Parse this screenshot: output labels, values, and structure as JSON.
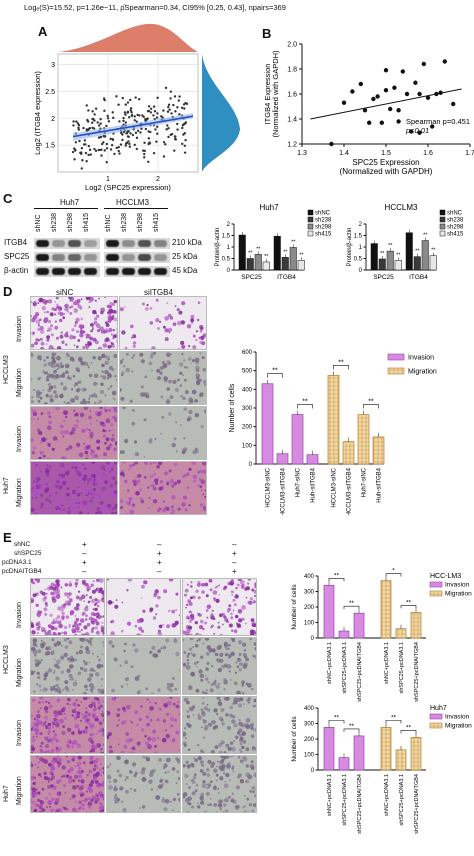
{
  "panelA": {
    "letter": "A",
    "stats_header": "Logₑ(S)=15.52, p=1.26e−11, ρ̂Spearman=0.34, CI95% [0.25, 0.43], npairs=369",
    "xlabel": "Log2 (SPC25 expression)",
    "ylabel": "Log2 (ITGB4 expression)",
    "xticks": [
      "1",
      "2"
    ],
    "yticks": [
      "1.5",
      "2",
      "2.5",
      "3"
    ]
  },
  "panelB": {
    "letter": "B",
    "xlabel_line1": "SPC25 Expression",
    "xlabel_line2": "(Normalized with GAPDH)",
    "ylabel_line1": "ITGB4 Expression",
    "ylabel_line2": "(Normalized with GAPDH)",
    "xticks": [
      "1.3",
      "1.4",
      "1.5",
      "1.6",
      "1.7"
    ],
    "yticks": [
      "1.2",
      "1.4",
      "1.6",
      "1.8",
      "2.0"
    ],
    "annotation_line1": "Spearman p=0.451",
    "annotation_line2": "p<0.01"
  },
  "panelC": {
    "letter": "C",
    "cell_lines": [
      "Huh7",
      "HCCLM3"
    ],
    "lanes": [
      "shNC",
      "sh238",
      "sh298",
      "sh415",
      "shNC",
      "sh238",
      "sh298",
      "sh415"
    ],
    "proteins": [
      "ITGB4",
      "SPC25",
      "β-actin"
    ],
    "sizes": [
      "210 kDa",
      "25 kDa",
      "45 kDa"
    ],
    "legend": [
      "shNC",
      "sh238",
      "sh298",
      "sh415"
    ],
    "ylabel": "Protein/β-actin",
    "sig": "**"
  },
  "panelD": {
    "letter": "D",
    "col_labels": [
      "siNC",
      "siITGB4"
    ],
    "row_groups": [
      "HCCLM3",
      "Huh7"
    ],
    "row_labels": [
      "Invasion",
      "Migration",
      "Invasion",
      "Migration"
    ],
    "ylabel": "Number of cells",
    "legend": [
      "Invasion",
      "Migration"
    ],
    "categories": [
      "HCCLM3-siNC",
      "HCCLM3-siITGB4",
      "Huh7-siNC",
      "Huh-siITGB4",
      "HCCLM3-siNC",
      "HCCLM3-siITGB4",
      "Huh7-siNC",
      "Huh-siITGB4"
    ],
    "sig": "**"
  },
  "panelE": {
    "letter": "E",
    "treatments": [
      "shNC",
      "shSPC25",
      "pcDNA3.1",
      "pcDNAITGB4"
    ],
    "matrix": [
      [
        "+",
        "–",
        "–"
      ],
      [
        "–",
        "+",
        "+"
      ],
      [
        "+",
        "+",
        "–"
      ],
      [
        "–",
        "–",
        "+"
      ]
    ],
    "row_groups": [
      "HCCLM3",
      "Huh7"
    ],
    "row_labels": [
      "Invasion",
      "Migration",
      "Invasion",
      "Migration"
    ],
    "ylabel": "Number of cells",
    "legend": [
      "Invasion",
      "Migration"
    ],
    "chart_titles": [
      "HCC-LM3",
      "Huh7"
    ],
    "categories": [
      "shNC+pcDNA3.1",
      "shSPC25+pcDNA3.1",
      "shSPC25+pcDNAITGB4"
    ],
    "sig_labels": [
      "**",
      "**",
      "*",
      "**",
      "**",
      "**",
      "**",
      "**"
    ]
  },
  "chart_data": [
    {
      "type": "scatter",
      "xlabel": "Log2 (SPC25 expression)",
      "ylabel": "Log2 (ITGB4 expression)",
      "xlim": [
        0,
        2.8
      ],
      "ylim": [
        1.0,
        3.2
      ],
      "xticks": [
        1,
        2
      ],
      "yticks": [
        1.5,
        2,
        2.5,
        3
      ],
      "fit": {
        "x0": 0,
        "y0": 1.63,
        "x1": 2.8,
        "y1": 2.05
      },
      "note": "369 pairs"
    },
    {
      "type": "scatter",
      "xlabel": "SPC25 Expression (Normalized with GAPDH)",
      "ylabel": "ITGB4 Expression (Normalized with GAPDH)",
      "xlim": [
        1.3,
        1.7
      ],
      "ylim": [
        1.2,
        2.0
      ],
      "x": [
        1.37,
        1.4,
        1.44,
        1.46,
        1.47,
        1.48,
        1.49,
        1.5,
        1.51,
        1.52,
        1.53,
        1.54,
        1.55,
        1.56,
        1.57,
        1.58,
        1.59,
        1.6,
        1.62,
        1.63,
        1.64,
        1.66,
        1.45,
        1.53,
        1.58,
        1.5,
        1.42,
        1.61
      ],
      "y": [
        1.2,
        1.53,
        1.68,
        1.37,
        1.56,
        1.58,
        1.37,
        1.63,
        1.48,
        1.65,
        1.47,
        1.78,
        1.6,
        1.3,
        1.69,
        1.6,
        1.84,
        1.57,
        1.6,
        1.61,
        1.86,
        1.52,
        1.47,
        1.38,
        1.29,
        1.79,
        1.62,
        1.34
      ],
      "fit": {
        "x0": 1.32,
        "y0": 1.4,
        "x1": 1.68,
        "y1": 1.64
      }
    },
    {
      "type": "bar",
      "title": "Huh7",
      "categories": [
        "SPC25",
        "ITGB4"
      ],
      "series": [
        {
          "name": "shNC",
          "values": [
            1.52,
            1.47
          ]
        },
        {
          "name": "sh238",
          "values": [
            0.5,
            0.55
          ]
        },
        {
          "name": "sh298",
          "values": [
            0.68,
            0.98
          ]
        },
        {
          "name": "sh415",
          "values": [
            0.35,
            0.42
          ]
        }
      ],
      "ylabel": "Protein/β-actin",
      "ylim": [
        0,
        2
      ],
      "yticks": [
        0.0,
        0.5,
        1.0,
        1.5,
        2.0
      ]
    },
    {
      "type": "bar",
      "title": "HCCLM3",
      "categories": [
        "SPC25",
        "ITGB4"
      ],
      "series": [
        {
          "name": "shNC",
          "values": [
            1.15,
            1.62
          ]
        },
        {
          "name": "sh238",
          "values": [
            0.48,
            0.58
          ]
        },
        {
          "name": "sh298",
          "values": [
            0.82,
            1.28
          ]
        },
        {
          "name": "sh415",
          "values": [
            0.42,
            0.62
          ]
        }
      ],
      "ylabel": "Protein/β-actin",
      "ylim": [
        0,
        2
      ],
      "yticks": [
        0.0,
        0.5,
        1.0,
        1.5,
        2.0
      ]
    },
    {
      "type": "bar",
      "categories": [
        "HCCLM3-siNC",
        "HCCLM3-siITGB4",
        "Huh7-siNC",
        "Huh-siITGB4"
      ],
      "series": [
        {
          "name": "Invasion",
          "values": [
            430,
            55,
            265,
            50
          ]
        },
        {
          "name": "Migration",
          "values": [
            475,
            120,
            265,
            145
          ]
        }
      ],
      "ylabel": "Number of cells",
      "ylim": [
        0,
        600
      ],
      "yticks": [
        0,
        100,
        200,
        300,
        400,
        500,
        600
      ]
    },
    {
      "type": "bar",
      "title": "HCC-LM3",
      "categories": [
        "shNC+pcDNA3.1",
        "shSPC25+pcDNA3.1",
        "shSPC25+pcDNAITGB4"
      ],
      "series": [
        {
          "name": "Invasion",
          "values": [
            340,
            45,
            160
          ]
        },
        {
          "name": "Migration",
          "values": [
            370,
            60,
            165
          ]
        }
      ],
      "ylabel": "Number of cells",
      "ylim": [
        0,
        400
      ],
      "yticks": [
        0,
        100,
        200,
        300,
        400
      ]
    },
    {
      "type": "bar",
      "title": "Huh7",
      "categories": [
        "shNC+pcDNA3.1",
        "shSPC25+pcDNA3.1",
        "shSPC25+pcDNAITGB4"
      ],
      "series": [
        {
          "name": "Invasion",
          "values": [
            275,
            80,
            220
          ]
        },
        {
          "name": "Migration",
          "values": [
            275,
            130,
            210
          ]
        }
      ],
      "ylabel": "Number of cells",
      "ylim": [
        0,
        400
      ],
      "yticks": [
        0,
        100,
        200,
        300,
        400
      ]
    }
  ]
}
